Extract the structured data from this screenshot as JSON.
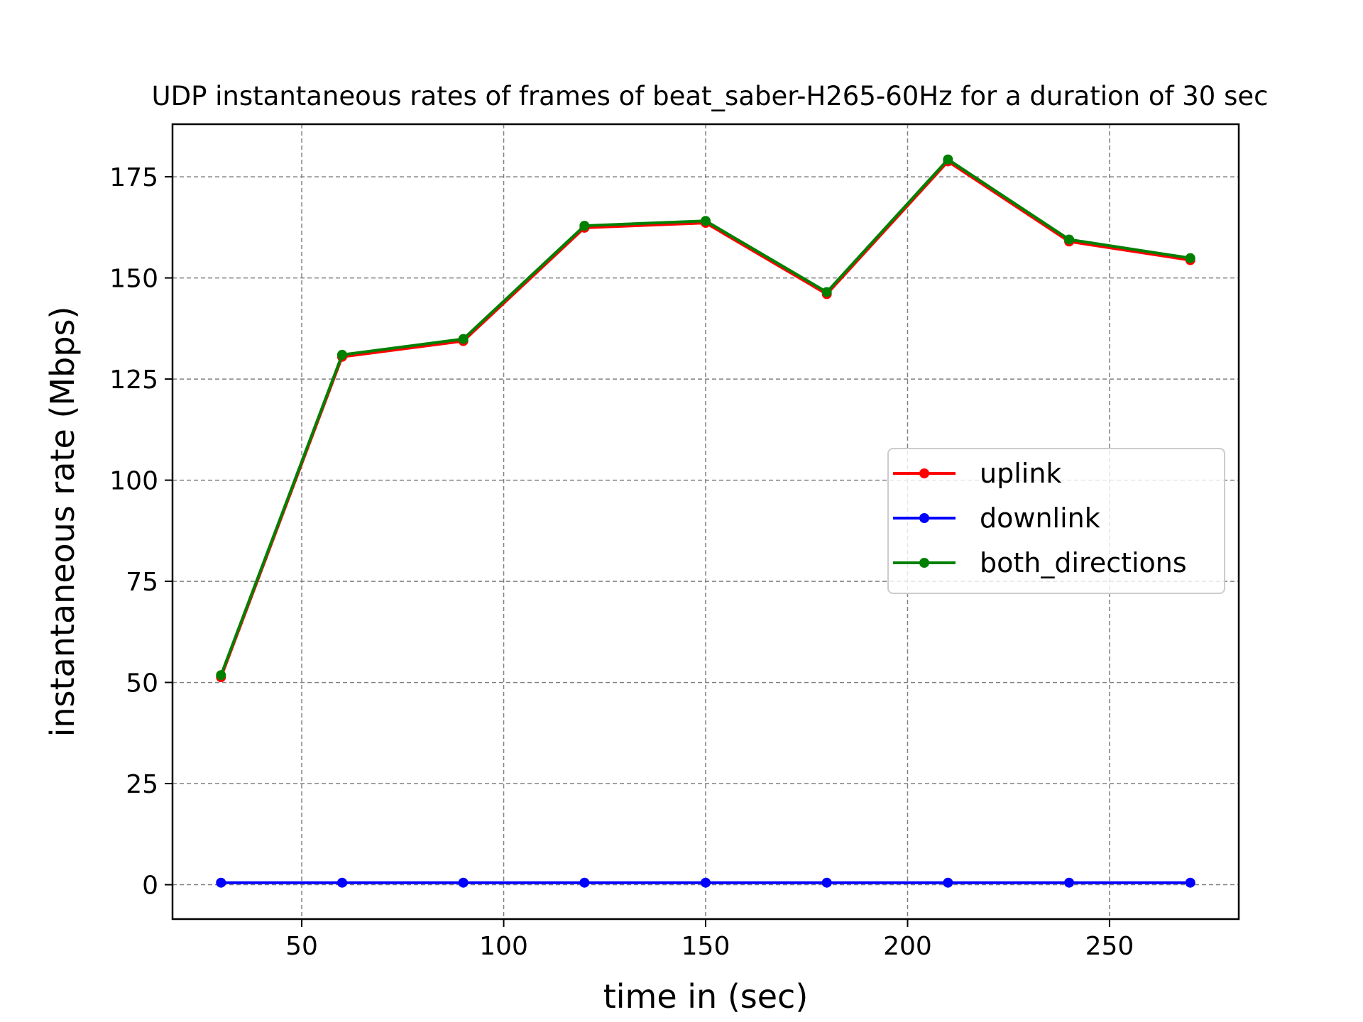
{
  "chart_data": {
    "type": "line",
    "title": "UDP instantaneous rates of frames of beat_saber-H265-60Hz for a duration of 30 sec",
    "xlabel": "time in (sec)",
    "ylabel": "instantaneous rate (Mbps)",
    "xlim": [
      18,
      282
    ],
    "ylim": [
      -8.5,
      188
    ],
    "xticks": [
      50,
      100,
      150,
      200,
      250
    ],
    "yticks": [
      0,
      25,
      50,
      75,
      100,
      125,
      150,
      175
    ],
    "grid": true,
    "legend_position": "center-right",
    "x": [
      30,
      60,
      90,
      120,
      150,
      180,
      210,
      240,
      270
    ],
    "series": [
      {
        "name": "uplink",
        "color": "#ff0000",
        "values": [
          51.3,
          130.5,
          134.4,
          162.4,
          163.6,
          146.0,
          178.8,
          159.0,
          154.4
        ]
      },
      {
        "name": "downlink",
        "color": "#0000ff",
        "values": [
          0.5,
          0.5,
          0.5,
          0.5,
          0.5,
          0.5,
          0.5,
          0.5,
          0.5
        ]
      },
      {
        "name": "both_directions",
        "color": "#008000",
        "values": [
          51.8,
          131.0,
          134.9,
          162.9,
          164.1,
          146.5,
          179.3,
          159.5,
          154.9
        ]
      }
    ]
  }
}
